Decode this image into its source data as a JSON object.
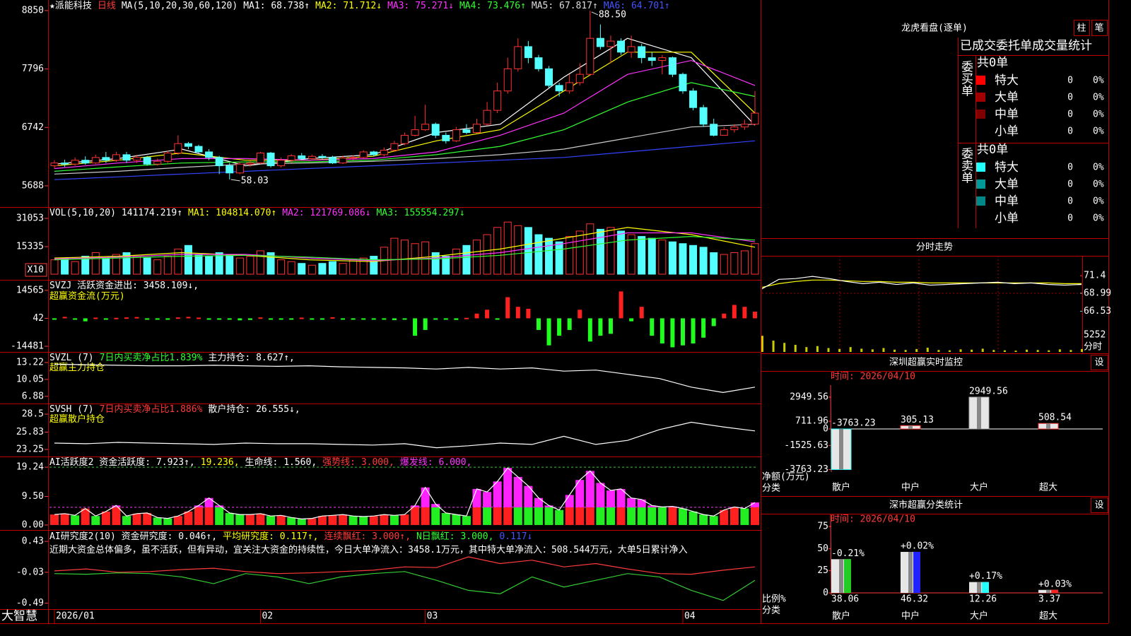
{
  "header": {
    "stock": "★派能科技",
    "period": "日线",
    "ma": "MA(5,10,20,30,60,120)",
    "values": [
      {
        "text": "MA1: 68.738↑",
        "color": "#ffffff"
      },
      {
        "text": "MA2: 71.712↓",
        "color": "#ffff00"
      },
      {
        "text": "MA3: 75.271↓",
        "color": "#ff33ff"
      },
      {
        "text": "MA4: 73.476↑",
        "color": "#33ff33"
      },
      {
        "text": "MA5: 67.817↑",
        "color": "#dddddd"
      },
      {
        "text": "MA6: 64.701↑",
        "color": "#4455ff"
      }
    ]
  },
  "main": {
    "ylim": [
      53.05,
      90.41
    ],
    "yticks": [
      {
        "value": 88.5,
        "label": "8850"
      },
      {
        "value": 77.96,
        "label": "7796"
      },
      {
        "value": 67.42,
        "label": "6742"
      },
      {
        "value": 56.88,
        "label": "5688"
      }
    ],
    "high": 88.5,
    "high_label": "88.50",
    "low": 58.03,
    "low_label": "58.03",
    "candles": [
      [
        60.5,
        61,
        61.5,
        60
      ],
      [
        61,
        60.8,
        61.6,
        60.3
      ],
      [
        60.8,
        61.5,
        62,
        60.5
      ],
      [
        61.5,
        61,
        62.2,
        60.7
      ],
      [
        61,
        62,
        62.5,
        60.8
      ],
      [
        62,
        61.5,
        63,
        61
      ],
      [
        61.5,
        62.5,
        63,
        61.2
      ],
      [
        62.5,
        61.5,
        63,
        61
      ],
      [
        61.5,
        62,
        62.5,
        61
      ],
      [
        62,
        60.8,
        62.3,
        60.5
      ],
      [
        60.8,
        61.3,
        61.8,
        60.5
      ],
      [
        61.3,
        62.8,
        63.2,
        61
      ],
      [
        62.8,
        64.5,
        66,
        62.5
      ],
      [
        64.5,
        64,
        64.8,
        63.5
      ],
      [
        64,
        63,
        64.3,
        62.8
      ],
      [
        63,
        62,
        63.5,
        61.5
      ],
      [
        62,
        60.5,
        62.3,
        59
      ],
      [
        60.5,
        59.2,
        61,
        58.03
      ],
      [
        59.2,
        60.8,
        61.2,
        59
      ],
      [
        60.8,
        61,
        61.5,
        60.3
      ],
      [
        61,
        62.8,
        63,
        60.8
      ],
      [
        62.8,
        60.5,
        63,
        60.2
      ],
      [
        60.5,
        61.5,
        62,
        60.2
      ],
      [
        61.5,
        62.3,
        62.6,
        61
      ],
      [
        62.3,
        61.8,
        62.8,
        61.5
      ],
      [
        61.8,
        62.2,
        62.5,
        61.5
      ],
      [
        62.2,
        62,
        62.6,
        61.7
      ],
      [
        62,
        61,
        62.3,
        60.8
      ],
      [
        61,
        61.9,
        62.3,
        60.8
      ],
      [
        61.9,
        62,
        62.4,
        61.5
      ],
      [
        62,
        63,
        63.3,
        61.8
      ],
      [
        63,
        62.5,
        63.2,
        62.2
      ],
      [
        62.5,
        63.3,
        63.8,
        62.2
      ],
      [
        63.3,
        64.5,
        65,
        63
      ],
      [
        64.5,
        66,
        66.5,
        64.2
      ],
      [
        66,
        67,
        69.5,
        65.8
      ],
      [
        67,
        68,
        71.5,
        66.8
      ],
      [
        68,
        66,
        68.3,
        65.5
      ],
      [
        66,
        65,
        66.5,
        64.5
      ],
      [
        65,
        67,
        67.5,
        64.8
      ],
      [
        67,
        66.5,
        68,
        66.2
      ],
      [
        66.5,
        68,
        69,
        66.3
      ],
      [
        68,
        70.5,
        72,
        67.8
      ],
      [
        70.5,
        74,
        75.5,
        70
      ],
      [
        74,
        78,
        80,
        73.5
      ],
      [
        78,
        82,
        83.5,
        77.5
      ],
      [
        82,
        80,
        83,
        79
      ],
      [
        80,
        78,
        80.5,
        77.5
      ],
      [
        78,
        75,
        78.5,
        74.5
      ],
      [
        75,
        74,
        75.5,
        73
      ],
      [
        74,
        75.5,
        77,
        73.5
      ],
      [
        75.5,
        77,
        79,
        75
      ],
      [
        77,
        83.5,
        88.5,
        76.8
      ],
      [
        83.5,
        82,
        86,
        81.5
      ],
      [
        82,
        83,
        84,
        79
      ],
      [
        83,
        81,
        83.5,
        80.5
      ],
      [
        81,
        82,
        84,
        80
      ],
      [
        82,
        80,
        82.5,
        79
      ],
      [
        80,
        79.5,
        81,
        78.5
      ],
      [
        79.5,
        80,
        80.5,
        77
      ],
      [
        80,
        77,
        80.2,
        76.5
      ],
      [
        77,
        74,
        77.3,
        73.5
      ],
      [
        74,
        71,
        74.5,
        70.5
      ],
      [
        71,
        68,
        71.5,
        67.5
      ],
      [
        68,
        66,
        69,
        65.8
      ],
      [
        66,
        67,
        67.5,
        66
      ],
      [
        67,
        67.5,
        68,
        66.5
      ],
      [
        67.5,
        68,
        68.8,
        67
      ],
      [
        68,
        70,
        74,
        67.8
      ]
    ],
    "ma_lines": [
      {
        "color": "#ffffff",
        "values": [
          60.8,
          61.8,
          63.5,
          60.5,
          61.8,
          62.5,
          66.5,
          68,
          76.5,
          83.5,
          80,
          67.8
        ]
      },
      {
        "color": "#ffff00",
        "values": [
          60.5,
          61.5,
          62.8,
          61.5,
          61.5,
          62.2,
          65,
          67,
          74,
          81,
          81,
          70
        ]
      },
      {
        "color": "#ff33ff",
        "values": [
          60,
          61,
          61.8,
          61.8,
          61.5,
          61.8,
          63,
          66,
          70,
          77,
          79.5,
          75
        ]
      },
      {
        "color": "#33ff33",
        "values": [
          59.5,
          60.3,
          61,
          61.2,
          61.2,
          61.5,
          62.5,
          64,
          67,
          72,
          75.5,
          73
        ]
      },
      {
        "color": "#cccccc",
        "values": [
          59,
          59.5,
          60.2,
          60.8,
          61,
          61.3,
          61.8,
          62.5,
          63.5,
          65.5,
          67.5,
          68
        ]
      },
      {
        "color": "#3344ff",
        "values": [
          58,
          58.5,
          59,
          59.5,
          60,
          60.5,
          61,
          61.5,
          62,
          63,
          64,
          65
        ]
      }
    ]
  },
  "dates": {
    "categories": [
      "2026/01",
      null,
      null,
      null,
      null,
      null,
      null,
      null,
      null,
      null,
      null,
      null,
      null,
      null,
      null,
      null,
      null,
      null,
      null,
      null,
      "02",
      null,
      null,
      null,
      null,
      null,
      null,
      null,
      null,
      null,
      null,
      null,
      null,
      null,
      null,
      null,
      "03",
      null,
      null,
      null,
      null,
      null,
      null,
      null,
      null,
      null,
      null,
      null,
      null,
      null,
      null,
      null,
      null,
      null,
      null,
      null,
      null,
      null,
      null,
      null,
      null,
      "04",
      null,
      null,
      null,
      null,
      null,
      null,
      null
    ],
    "brand": "大智慧"
  },
  "volume": {
    "title": "VOL(5,10,20)",
    "items": [
      {
        "text": "141174.219↑",
        "color": "#ffffff"
      },
      {
        "text": "MA1: 104814.070↑",
        "color": "#ffff00"
      },
      {
        "text": "MA2: 121769.086↓",
        "color": "#ff33ff"
      },
      {
        "text": "MA3: 155554.297↓",
        "color": "#33ff33"
      }
    ],
    "ylim": [
      -3144,
      37340
    ],
    "yticks": [
      31053,
      15335
    ],
    "unit": "X10",
    "values": [
      8000,
      9000,
      7000,
      10000,
      12000,
      9000,
      11000,
      12000,
      10000,
      9000,
      8000,
      10000,
      14000,
      16000,
      11000,
      10000,
      12000,
      11000,
      9000,
      10000,
      13000,
      12000,
      8000,
      7000,
      6000,
      5000,
      6000,
      7000,
      6000,
      8000,
      9000,
      10000,
      15000,
      20000,
      19000,
      17000,
      18000,
      12000,
      10000,
      14000,
      16000,
      19000,
      22000,
      26000,
      29000,
      27000,
      26000,
      22000,
      20000,
      18000,
      21000,
      24000,
      28000,
      25000,
      26000,
      24000,
      22000,
      21000,
      20000,
      19000,
      18000,
      17000,
      16000,
      15000,
      12000,
      11000,
      12000,
      13000,
      17000
    ],
    "ma_lines": [
      {
        "color": "#ffff00",
        "values": [
          9000,
          10000,
          12000,
          10500,
          8000,
          7000,
          10000,
          14000,
          20000,
          26000,
          22000,
          15000
        ]
      },
      {
        "color": "#ff33ff",
        "values": [
          8500,
          9500,
          11000,
          11000,
          9000,
          7500,
          9000,
          12000,
          17000,
          23000,
          23000,
          18000
        ]
      },
      {
        "color": "#33ff33",
        "values": [
          8000,
          9000,
          10000,
          10500,
          9500,
          8000,
          8500,
          10500,
          14000,
          19000,
          21000,
          19000
        ]
      }
    ]
  },
  "svzj": {
    "title": "SVZJ  活跃资金进出: 3458.109↓,",
    "subtitle": "超赢资金流(万元)",
    "ylim": [
      -17400,
      20010
    ],
    "yticks": [
      14565,
      42,
      -14481
    ],
    "values": [
      -300,
      800,
      -500,
      -1500,
      400,
      -200,
      300,
      500,
      700,
      -400,
      -600,
      -300,
      500,
      800,
      400,
      -500,
      -700,
      -600,
      -1000,
      -800,
      500,
      -400,
      -300,
      -600,
      400,
      -200,
      -500,
      600,
      -300,
      -400,
      -200,
      -500,
      -300,
      -900,
      -600,
      -9000,
      -6000,
      -600,
      -500,
      -800,
      300,
      2500,
      4500,
      -200,
      11000,
      6000,
      5000,
      -6000,
      -14000,
      -9000,
      -6000,
      4500,
      -12000,
      -9000,
      -8000,
      14000,
      -1500,
      6000,
      -9000,
      -13000,
      -15000,
      -14000,
      -13000,
      -10000,
      -4000,
      2500,
      7000,
      6000,
      3500
    ]
  },
  "svzl": {
    "title": "SVZL (7)",
    "note": "7日内买卖净占比1.839%",
    "value": "主力持仓: 8.627↑,",
    "subtitle": "超赢主力持仓",
    "ylim": [
      5.53,
      15.2
    ],
    "yticks": [
      13.22,
      10.05,
      6.88
    ],
    "values": [
      12.9,
      12.8,
      12.7,
      12.6,
      12.6,
      12.7,
      12.6,
      12.5,
      12.6,
      12.4,
      12.3,
      12.2,
      12.0,
      12.3,
      12.0,
      12.2,
      11.6,
      11.8,
      11.0,
      10.2,
      8.6,
      7.6,
      8.6
    ]
  },
  "svsh": {
    "title": "SVSH (7)",
    "note": "7日内买卖净占比1.886%",
    "value": "散户持仓: 26.555↓,",
    "subtitle": "超赢散户持仓",
    "ylim": [
      22.2,
      30.08
    ],
    "yticks": [
      28.5,
      25.83,
      23.25
    ],
    "values": [
      24.2,
      24.1,
      24.3,
      24.2,
      24.1,
      24.0,
      24.2,
      24.1,
      24.1,
      24.0,
      23.9,
      24.1,
      23.5,
      23.8,
      24.2,
      24.0,
      25.2,
      24.0,
      24.6,
      26.2,
      27.3,
      26.6,
      26.0
    ]
  },
  "ai1": {
    "items": [
      {
        "text": "AI活跃度2 资金活跃度: 7.923↑,",
        "color": "#ffffff"
      },
      {
        "text": "19.236,",
        "color": "#ffff00"
      },
      {
        "text": "生命线: 1.560,",
        "color": "#ffffff"
      },
      {
        "text": "强势线: 3.000,",
        "color": "#ff3a3a"
      },
      {
        "text": "爆发线: 6.000,",
        "color": "#ff33ff"
      }
    ],
    "ylim": [
      -1.66,
      22.8
    ],
    "yticks": [
      19.24,
      {
        "value": 9.5,
        "label": "9.50"
      },
      {
        "value": 0,
        "label": "0.00"
      }
    ],
    "levels": [
      {
        "value": 5.9,
        "color": "#ff33ff"
      },
      {
        "value": 19.24,
        "color": "#33cc33"
      }
    ],
    "values": [
      3.5,
      3.8,
      3.2,
      5.5,
      3,
      4.5,
      6.5,
      3,
      3.8,
      4,
      2.5,
      2.2,
      3,
      4.5,
      6.5,
      9,
      6.5,
      4,
      3.5,
      3.5,
      3.8,
      3,
      3.2,
      2.5,
      2,
      2.2,
      3,
      3.2,
      3.5,
      3,
      2.8,
      3,
      3.5,
      3.2,
      3.5,
      6.5,
      12.5,
      7,
      4,
      3.5,
      3,
      12,
      11,
      14.5,
      19,
      16,
      13,
      9,
      6.5,
      5,
      10,
      15,
      18,
      14,
      11.5,
      12,
      9,
      8.5,
      6.5,
      6,
      6.2,
      5.5,
      4.5,
      3.5,
      3,
      5,
      6,
      5.5,
      7.5
    ]
  },
  "ai2": {
    "items": [
      {
        "text": "AI研究度2(10) 资金研究度: 0.046↑,",
        "color": "#ffffff"
      },
      {
        "text": "平均研究度: 0.117↑,",
        "color": "#ffff00"
      },
      {
        "text": "连续飘红: 3.000↑,",
        "color": "#ff3a3a"
      },
      {
        "text": "N日飘红: 3.000,",
        "color": "#33ff33"
      },
      {
        "text": "0.117↓",
        "color": "#4455ff"
      }
    ],
    "comment": "近期大资金总体偏多，虽不活跃，但有异动，宜关注大资金的持续性，今日大单净流入：3458.1万元，其中特大单净流入：508.544万元，大单5日累计净入",
    "ylim": [
      -0.58,
      0.6
    ],
    "yticks": [
      0.43,
      -0.03,
      -0.49
    ],
    "lines": [
      {
        "color": "#ff3a3a",
        "values": [
          -0.01,
          0.02,
          -0.03,
          -0.02,
          0.01,
          0.03,
          -0.02,
          -0.05,
          -0.04,
          -0.02,
          0.0,
          0.05,
          0.04,
          0.2,
          0.1,
          0.15,
          0.05,
          0.1,
          0.02,
          -0.05,
          -0.06,
          0.0,
          0.05
        ]
      },
      {
        "color": "#33cc33",
        "values": [
          -0.05,
          -0.06,
          -0.04,
          -0.05,
          -0.1,
          -0.2,
          -0.05,
          -0.1,
          -0.2,
          -0.1,
          -0.05,
          -0.02,
          -0.15,
          -0.3,
          -0.35,
          -0.1,
          -0.25,
          -0.15,
          -0.05,
          -0.1,
          -0.3,
          -0.45,
          -0.15
        ]
      }
    ]
  },
  "dragon": {
    "title": "龙虎看盘(逐单)",
    "buttons": [
      "柱",
      "笔"
    ],
    "heading": "已成交委托单成交量统计",
    "groups": [
      {
        "label": "委买单",
        "total": "共0单",
        "rows": [
          {
            "name": "特大",
            "color": "#ff0000",
            "count": "0",
            "pct": "0%"
          },
          {
            "name": "大单",
            "color": "#a00000",
            "count": "0",
            "pct": "0%"
          },
          {
            "name": "中单",
            "color": "#800000",
            "count": "0",
            "pct": "0%"
          },
          {
            "name": "小单",
            "color": null,
            "count": "0",
            "pct": "0%"
          }
        ]
      },
      {
        "label": "委卖单",
        "total": "共0单",
        "rows": [
          {
            "name": "特大",
            "color": "#22ffff",
            "count": "0",
            "pct": "0%"
          },
          {
            "name": "大单",
            "color": "#009999",
            "count": "0",
            "pct": "0%"
          },
          {
            "name": "中单",
            "color": "#008888",
            "count": "0",
            "pct": "0%"
          },
          {
            "name": "小单",
            "color": null,
            "count": "0",
            "pct": "0%"
          }
        ]
      }
    ]
  },
  "intraday": {
    "title": "分时走势",
    "ylim": [
      64.63,
      74.12
    ],
    "yticks": [
      71.4,
      68.99,
      66.53
    ],
    "price": [
      69.6,
      70.9,
      71.0,
      71.3,
      71.0,
      70.6,
      70.3,
      70.5,
      70.2,
      70.4,
      70.1,
      70.2,
      70.3,
      70.4,
      70.5,
      70.3,
      70.4,
      70.2,
      70.1,
      70.2
    ],
    "avg": [
      69.8,
      70.3,
      70.6,
      70.8,
      70.8,
      70.7,
      70.6,
      70.6,
      70.5,
      70.5,
      70.4,
      70.4,
      70.4,
      70.4,
      70.4,
      70.4,
      70.4,
      70.4,
      70.3,
      70.3
    ],
    "vlim": [
      0,
      7221
    ],
    "vticks": [
      5252
    ],
    "vlabel": "分时",
    "volume": [
      5000,
      3500,
      2800,
      2200,
      1500,
      1800,
      1200,
      900,
      1500,
      1000,
      800,
      1200,
      700,
      600,
      900,
      1300,
      600,
      500,
      800,
      700,
      1000,
      600,
      500,
      400,
      700,
      600,
      500,
      800,
      600,
      900
    ]
  },
  "monitor": {
    "title": "深圳超赢实时监控",
    "button": "设",
    "time": "时间: 2026/04/10",
    "ylabel": "净额(万元)",
    "xlabel": "分类",
    "ylim": [
      -3997,
      4063
    ],
    "yticks": [
      2949.56,
      711.96,
      0,
      -1525.63,
      -3763.23
    ],
    "categories": [
      "散户",
      "中户",
      "大户",
      "超大"
    ],
    "category_colors": [
      "#33ff33",
      "#ff3a3a",
      "#ff3a3a",
      "#ff3a3a"
    ],
    "values": [
      -3763.23,
      305.13,
      2949.56,
      508.54
    ],
    "edge_colors": [
      "#22ffff",
      "#ff3a3a",
      "#aaaaaa",
      "#ff3a3a"
    ]
  },
  "stats": {
    "title": "深市超赢分类统计",
    "button": "设",
    "time": "时间: 2026/04/10",
    "ylabel": "比例%",
    "xlabel": "分类",
    "ylim": [
      -2.4,
      88.6
    ],
    "yticks": [
      75,
      50,
      25,
      0
    ],
    "categories": [
      "散户",
      "中户",
      "大户",
      "超大"
    ],
    "category_colors": [
      "#33ff33",
      "#ff3a3a",
      "#ff3a3a",
      "#ff3a3a"
    ],
    "colors": [
      "#22cc22",
      "#2222ff",
      "#22ffff",
      "#ff2222"
    ],
    "values": [
      38.06,
      46.32,
      12.26,
      3.37
    ],
    "pct": [
      -0.21,
      0.02,
      0.17,
      0.03
    ],
    "pct_labels": [
      "-0.21%",
      "+0.02%",
      "+0.17%",
      "+0.03%"
    ]
  }
}
